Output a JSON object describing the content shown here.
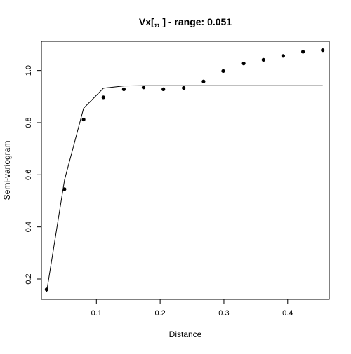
{
  "chart_data": {
    "type": "scatter",
    "title": "Vx[,,   ] - range: 0.051",
    "xlabel": "Distance",
    "ylabel": "Semi-variogram",
    "xlim": [
      0.0138,
      0.4652
    ],
    "ylim": [
      0.122,
      1.112
    ],
    "x_ticks": [
      0.1,
      0.2,
      0.3,
      0.4
    ],
    "y_ticks": [
      0.2,
      0.4,
      0.6,
      0.8,
      1.0
    ],
    "grid": false,
    "legend": "none",
    "points": {
      "x": [
        0.022,
        0.05,
        0.08,
        0.111,
        0.143,
        0.174,
        0.205,
        0.237,
        0.268,
        0.299,
        0.331,
        0.362,
        0.393,
        0.424,
        0.455
      ],
      "y": [
        0.16,
        0.545,
        0.812,
        0.897,
        0.928,
        0.935,
        0.928,
        0.933,
        0.958,
        0.998,
        1.027,
        1.041,
        1.056,
        1.072,
        1.078
      ]
    },
    "model_line": {
      "x": [
        0.022,
        0.05,
        0.08,
        0.111,
        0.143,
        0.174,
        0.205,
        0.237,
        0.268,
        0.299,
        0.331,
        0.362,
        0.393,
        0.424,
        0.455
      ],
      "y": [
        0.15,
        0.58,
        0.855,
        0.932,
        0.941,
        0.942,
        0.942,
        0.942,
        0.942,
        0.942,
        0.942,
        0.942,
        0.942,
        0.942,
        0.942
      ]
    },
    "colors": {
      "points": "#000000",
      "line": "#000000",
      "axes": "#000000"
    }
  }
}
